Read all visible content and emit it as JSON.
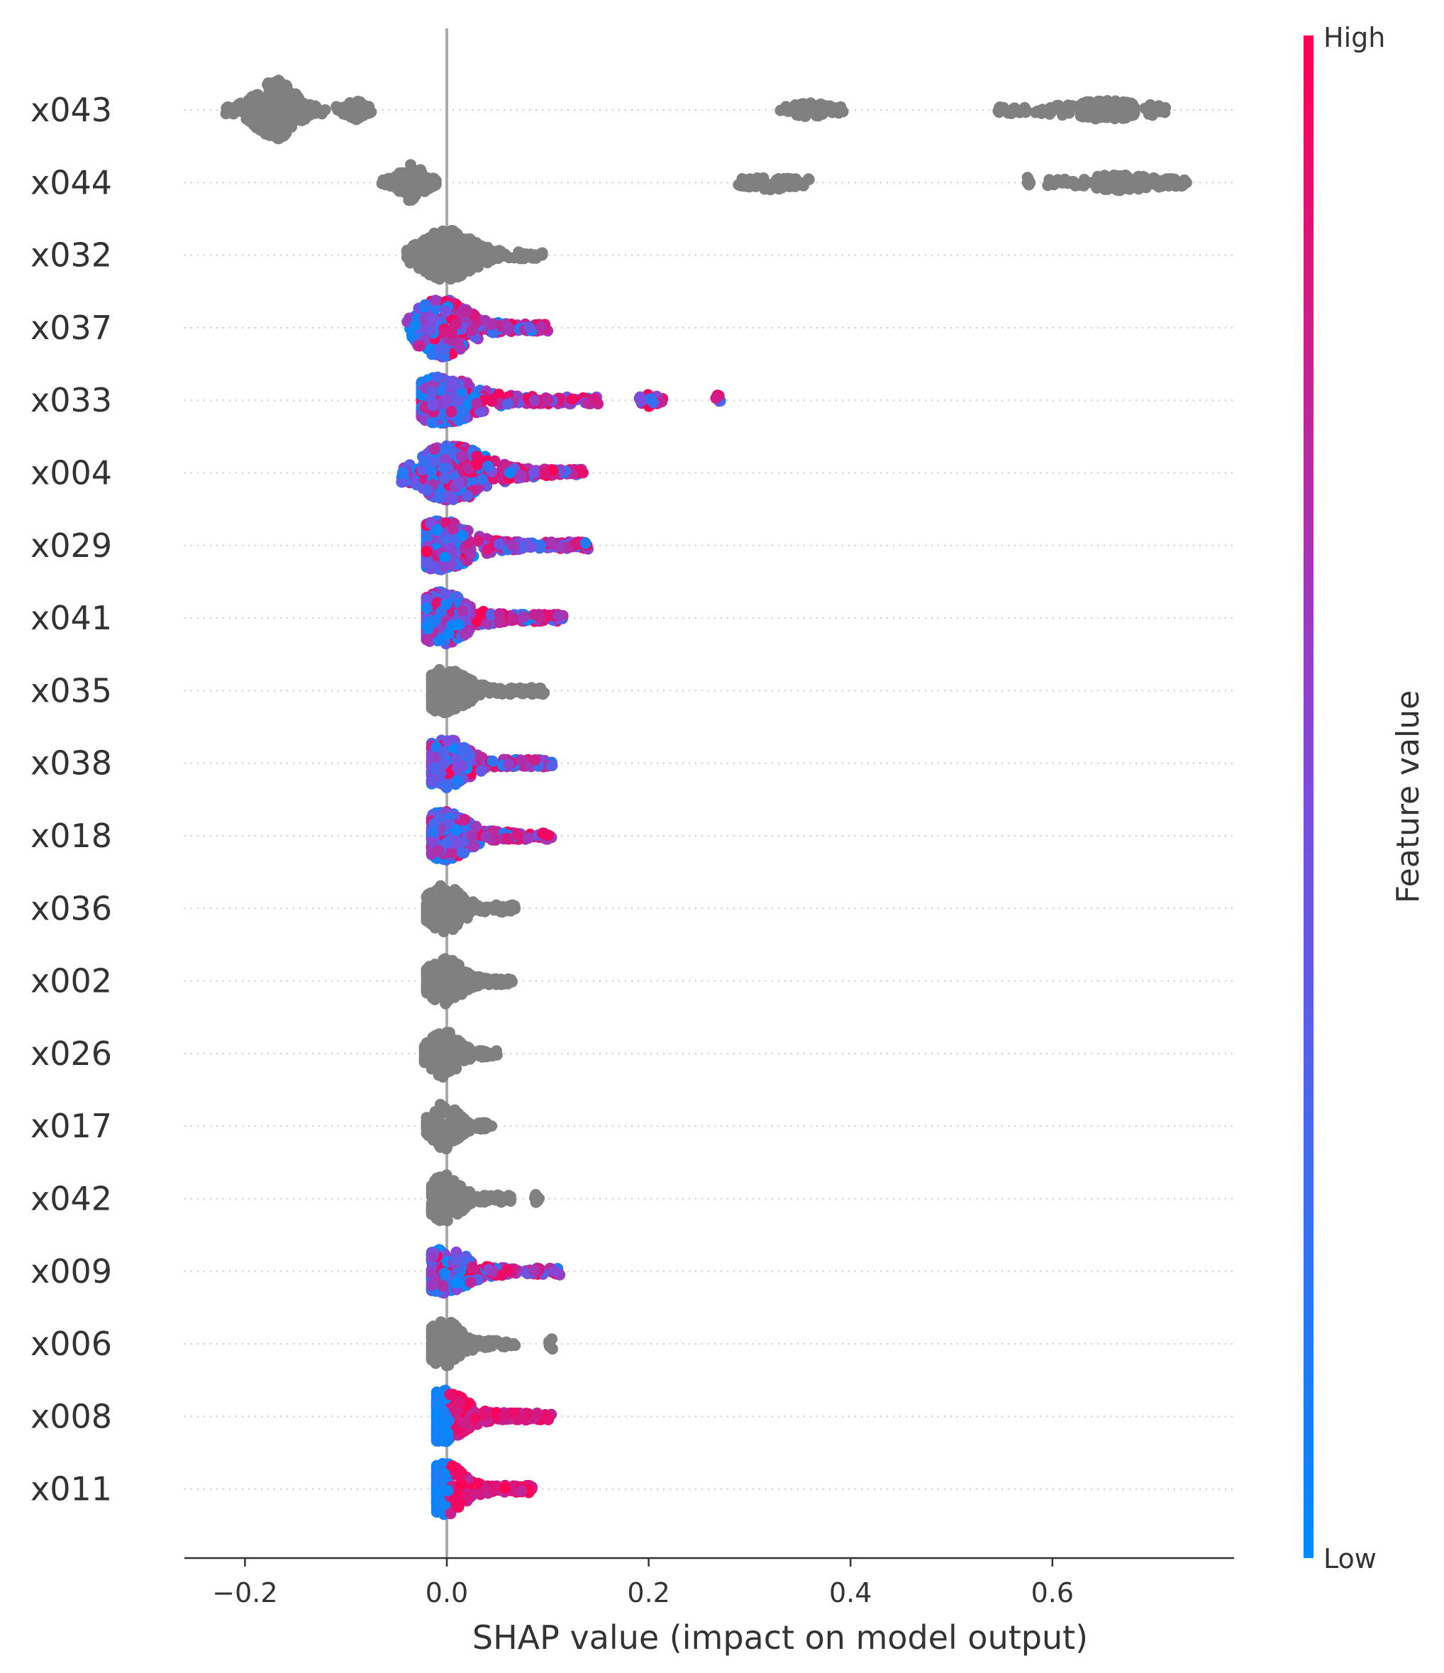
{
  "chart_data": {
    "type": "scatter",
    "subtype": "shap-beeswarm",
    "title": "",
    "xlabel": "SHAP value (impact on model output)",
    "xlim": [
      -0.26,
      0.78
    ],
    "xticks": [
      -0.2,
      0.0,
      0.2,
      0.4,
      0.6
    ],
    "xtick_labels": [
      "−0.2",
      "0.0",
      "0.2",
      "0.4",
      "0.6"
    ],
    "zero_line": 0.0,
    "grid": "dotted horizontal per feature",
    "colorbar": {
      "title": "Feature value",
      "high_label": "High",
      "low_label": "Low",
      "high_color": "#ff0052",
      "mid_color": "#7d4ce0",
      "low_color": "#008bfb",
      "missing_color": "#808080",
      "placement": "right"
    },
    "features": [
      {
        "name": "x043",
        "colored": false,
        "clusters": [
          {
            "lo": -0.22,
            "hi": -0.12,
            "center": -0.17,
            "width": 1.0
          },
          {
            "lo": -0.11,
            "hi": -0.075,
            "center": -0.09,
            "width": 0.25
          },
          {
            "lo": 0.33,
            "hi": 0.395,
            "center": 0.36,
            "width": 0.14
          },
          {
            "lo": 0.545,
            "hi": 0.715,
            "center": 0.655,
            "width": 0.22
          }
        ]
      },
      {
        "name": "x044",
        "colored": false,
        "clusters": [
          {
            "lo": -0.065,
            "hi": -0.01,
            "center": -0.035,
            "width": 0.55
          },
          {
            "lo": 0.288,
            "hi": 0.36,
            "center": 0.32,
            "width": 0.14
          },
          {
            "lo": 0.572,
            "hi": 0.578,
            "center": 0.575,
            "width": 0.1
          },
          {
            "lo": 0.595,
            "hi": 0.735,
            "center": 0.665,
            "width": 0.16
          }
        ]
      },
      {
        "name": "x032",
        "colored": false,
        "clusters": [
          {
            "lo": -0.04,
            "hi": 0.095,
            "center": 0.0,
            "width": 0.8
          }
        ]
      },
      {
        "name": "x037",
        "colored": true,
        "clusters": [
          {
            "lo": -0.04,
            "hi": 0.1,
            "center": -0.005,
            "width": 0.95
          }
        ]
      },
      {
        "name": "x033",
        "colored": true,
        "clusters": [
          {
            "lo": -0.025,
            "hi": 0.15,
            "center": -0.005,
            "width": 0.75
          },
          {
            "lo": 0.19,
            "hi": 0.215,
            "center": 0.2,
            "width": 0.1
          },
          {
            "lo": 0.265,
            "hi": 0.272,
            "center": 0.268,
            "width": 0.1
          }
        ]
      },
      {
        "name": "x004",
        "colored": true,
        "clusters": [
          {
            "lo": -0.045,
            "hi": 0.135,
            "center": 0.005,
            "width": 0.9
          }
        ]
      },
      {
        "name": "x029",
        "colored": true,
        "clusters": [
          {
            "lo": -0.02,
            "hi": 0.14,
            "center": -0.005,
            "width": 0.8
          }
        ]
      },
      {
        "name": "x041",
        "colored": true,
        "clusters": [
          {
            "lo": -0.02,
            "hi": 0.115,
            "center": -0.005,
            "width": 0.85
          }
        ]
      },
      {
        "name": "x035",
        "colored": false,
        "clusters": [
          {
            "lo": -0.015,
            "hi": 0.1,
            "center": -0.002,
            "width": 0.7
          }
        ]
      },
      {
        "name": "x038",
        "colored": true,
        "clusters": [
          {
            "lo": -0.015,
            "hi": 0.105,
            "center": -0.002,
            "width": 0.8
          }
        ]
      },
      {
        "name": "x018",
        "colored": true,
        "clusters": [
          {
            "lo": -0.015,
            "hi": 0.105,
            "center": -0.002,
            "width": 0.8
          }
        ]
      },
      {
        "name": "x036",
        "colored": false,
        "clusters": [
          {
            "lo": -0.02,
            "hi": 0.068,
            "center": -0.002,
            "width": 0.75
          }
        ]
      },
      {
        "name": "x002",
        "colored": false,
        "clusters": [
          {
            "lo": -0.02,
            "hi": 0.065,
            "center": -0.002,
            "width": 0.75
          }
        ]
      },
      {
        "name": "x026",
        "colored": false,
        "clusters": [
          {
            "lo": -0.022,
            "hi": 0.05,
            "center": -0.003,
            "width": 0.75
          }
        ]
      },
      {
        "name": "x017",
        "colored": false,
        "clusters": [
          {
            "lo": -0.02,
            "hi": 0.045,
            "center": -0.002,
            "width": 0.75
          }
        ]
      },
      {
        "name": "x042",
        "colored": false,
        "clusters": [
          {
            "lo": -0.015,
            "hi": 0.065,
            "center": -0.002,
            "width": 0.75
          },
          {
            "lo": 0.087,
            "hi": 0.093,
            "center": 0.09,
            "width": 0.1
          }
        ]
      },
      {
        "name": "x009",
        "colored": true,
        "clusters": [
          {
            "lo": -0.015,
            "hi": 0.112,
            "center": -0.002,
            "width": 0.7
          }
        ]
      },
      {
        "name": "x006",
        "colored": false,
        "clusters": [
          {
            "lo": -0.015,
            "hi": 0.068,
            "center": -0.002,
            "width": 0.75
          },
          {
            "lo": 0.101,
            "hi": 0.107,
            "center": 0.104,
            "width": 0.1
          }
        ]
      },
      {
        "name": "x008",
        "colored": true,
        "low_cluster_left": true,
        "clusters": [
          {
            "lo": -0.01,
            "hi": 0.105,
            "center": -0.002,
            "width": 0.85
          }
        ]
      },
      {
        "name": "x011",
        "colored": true,
        "low_cluster_left": true,
        "clusters": [
          {
            "lo": -0.01,
            "hi": 0.085,
            "center": -0.002,
            "width": 0.85
          }
        ]
      }
    ]
  }
}
